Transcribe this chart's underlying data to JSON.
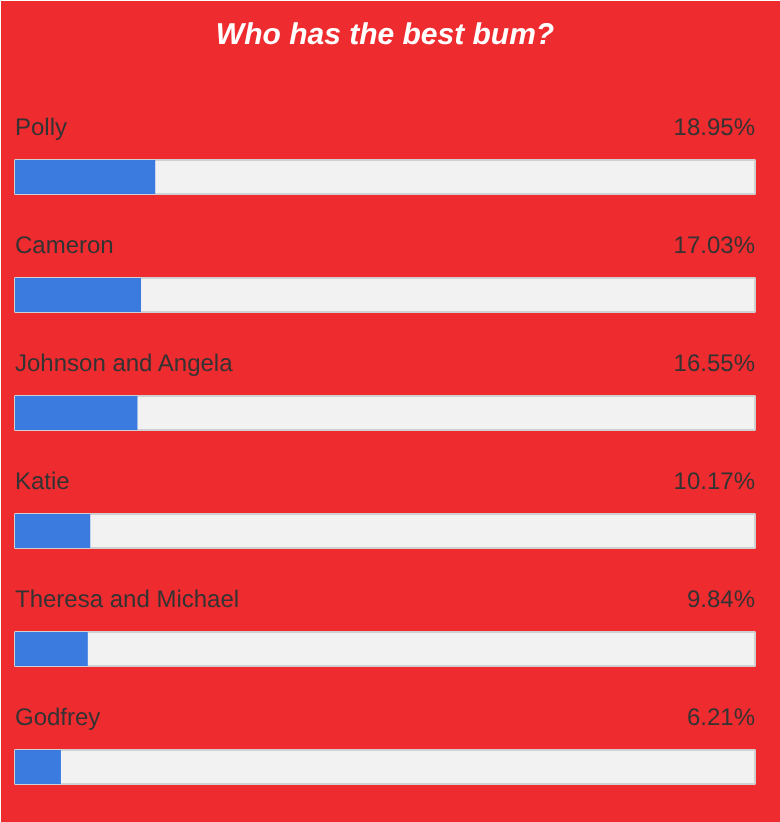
{
  "chart_data": {
    "type": "bar",
    "orientation": "horizontal",
    "title": "Who has the best bum?",
    "categories": [
      "Polly",
      "Cameron",
      "Johnson and Angela",
      "Katie",
      "Theresa and Michael",
      "Godfrey"
    ],
    "values": [
      18.95,
      17.03,
      16.55,
      10.17,
      9.84,
      6.21
    ],
    "value_labels": [
      "18.95%",
      "17.03%",
      "16.55%",
      "10.17%",
      "9.84%",
      "6.21%"
    ],
    "color": "#3b7be0",
    "xlim": [
      0,
      100
    ]
  }
}
